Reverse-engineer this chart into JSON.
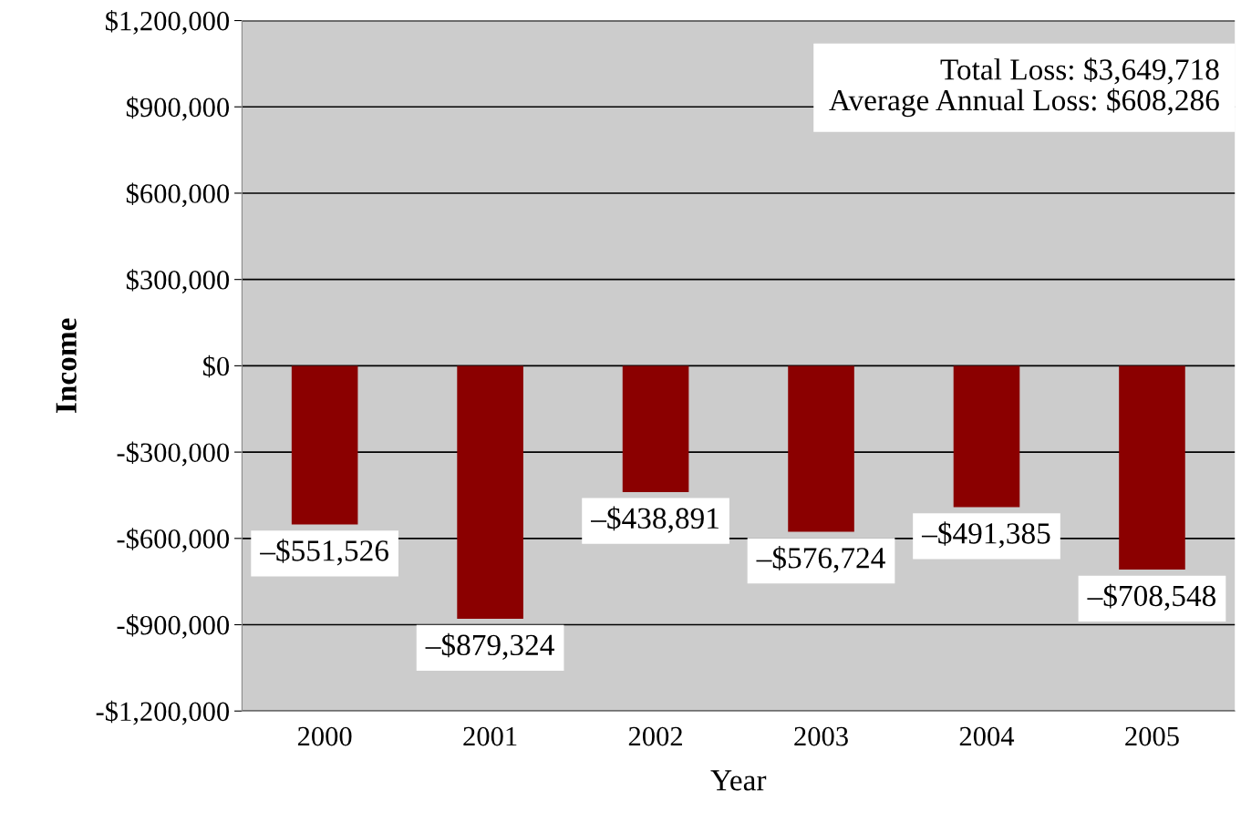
{
  "chart_data": {
    "type": "bar",
    "xlabel": "Year",
    "ylabel": "Income",
    "categories": [
      "2000",
      "2001",
      "2002",
      "2003",
      "2004",
      "2005"
    ],
    "values": [
      -551526,
      -879324,
      -438891,
      -576724,
      -491385,
      -708548
    ],
    "value_labels": [
      "–$551,526",
      "–$879,324",
      "–$438,891",
      "–$576,724",
      "–$491,385",
      "–$708,548"
    ],
    "color": "#8b0000",
    "ylim": [
      -1200000,
      1200000
    ],
    "yticks": [
      {
        "value": -1200000,
        "label": "-$1,200,000"
      },
      {
        "value": -900000,
        "label": "-$900,000"
      },
      {
        "value": -600000,
        "label": "-$600,000"
      },
      {
        "value": -300000,
        "label": "-$300,000"
      },
      {
        "value": 0,
        "label": "$0"
      },
      {
        "value": 300000,
        "label": "$300,000"
      },
      {
        "value": 600000,
        "label": "$600,000"
      },
      {
        "value": 900000,
        "label": "$900,000"
      },
      {
        "value": 1200000,
        "label": "$1,200,000"
      }
    ],
    "grid": "y",
    "annotations": [
      "Total Loss: $3,649,718",
      "Average Annual Loss: $608,286"
    ]
  }
}
